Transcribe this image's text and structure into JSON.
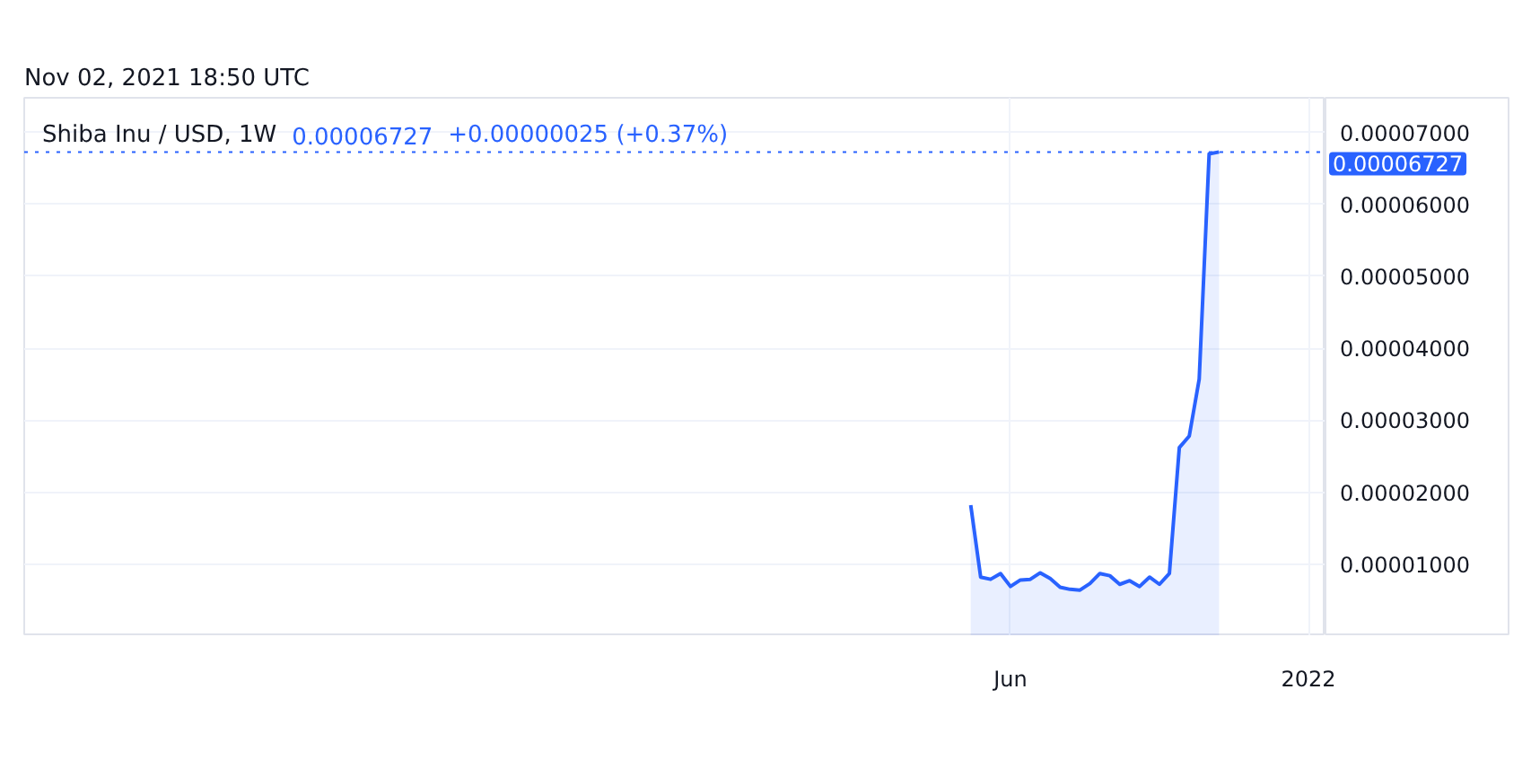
{
  "chart_data": {
    "type": "area",
    "title": "Shiba Inu / USD, 1W",
    "annotations": [
      "Nov 02, 2021 18:50 UTC",
      "0.00006727",
      "+0.00000025 (+0.37%)"
    ],
    "x": [
      "2021-05-10",
      "2021-05-17",
      "2021-05-24",
      "2021-05-31",
      "2021-06-07",
      "2021-06-14",
      "2021-06-21",
      "2021-06-28",
      "2021-07-05",
      "2021-07-12",
      "2021-07-19",
      "2021-07-26",
      "2021-08-02",
      "2021-08-09",
      "2021-08-16",
      "2021-08-23",
      "2021-08-30",
      "2021-09-06",
      "2021-09-13",
      "2021-09-20",
      "2021-09-27",
      "2021-10-04",
      "2021-10-11",
      "2021-10-18",
      "2021-10-25",
      "2021-11-01"
    ],
    "series": [
      {
        "color": "#2962ff",
        "values": [
          1.82e-05,
          8.2e-06,
          7.9e-06,
          8.7e-06,
          6.9e-06,
          7.8e-06,
          7.9e-06,
          8.8e-06,
          8e-06,
          6.8e-06,
          6.5e-06,
          6.4e-06,
          7.3e-06,
          8.7e-06,
          8.4e-06,
          7.2e-06,
          7.7e-06,
          6.9e-06,
          8.2e-06,
          7.2e-06,
          8.7e-06,
          2.62e-05,
          2.78e-05,
          3.57e-05,
          6.7e-05,
          6.727e-05
        ]
      }
    ],
    "xlim": [
      "2019-07-13",
      "2022-01-15"
    ],
    "xticks": [
      {
        "value": "2021-06-07",
        "label": "Jun"
      },
      {
        "value": "2022-01-03",
        "label": "2022"
      }
    ],
    "ylim": [
      0,
      7.48e-05
    ],
    "yticks": [
      {
        "value": 1e-05,
        "label": "0.00001000"
      },
      {
        "value": 2e-05,
        "label": "0.00002000"
      },
      {
        "value": 3e-05,
        "label": "0.00003000"
      },
      {
        "value": 4e-05,
        "label": "0.00004000"
      },
      {
        "value": 5e-05,
        "label": "0.00005000"
      },
      {
        "value": 6e-05,
        "label": "0.00006000"
      },
      {
        "value": 7e-05,
        "label": "0.00007000"
      }
    ],
    "grid": true,
    "ref_lines": [
      {
        "axis": "y",
        "value": 6.727e-05,
        "label": "0.00006727",
        "color": "#2962ff",
        "line_style": "dotted"
      }
    ]
  }
}
